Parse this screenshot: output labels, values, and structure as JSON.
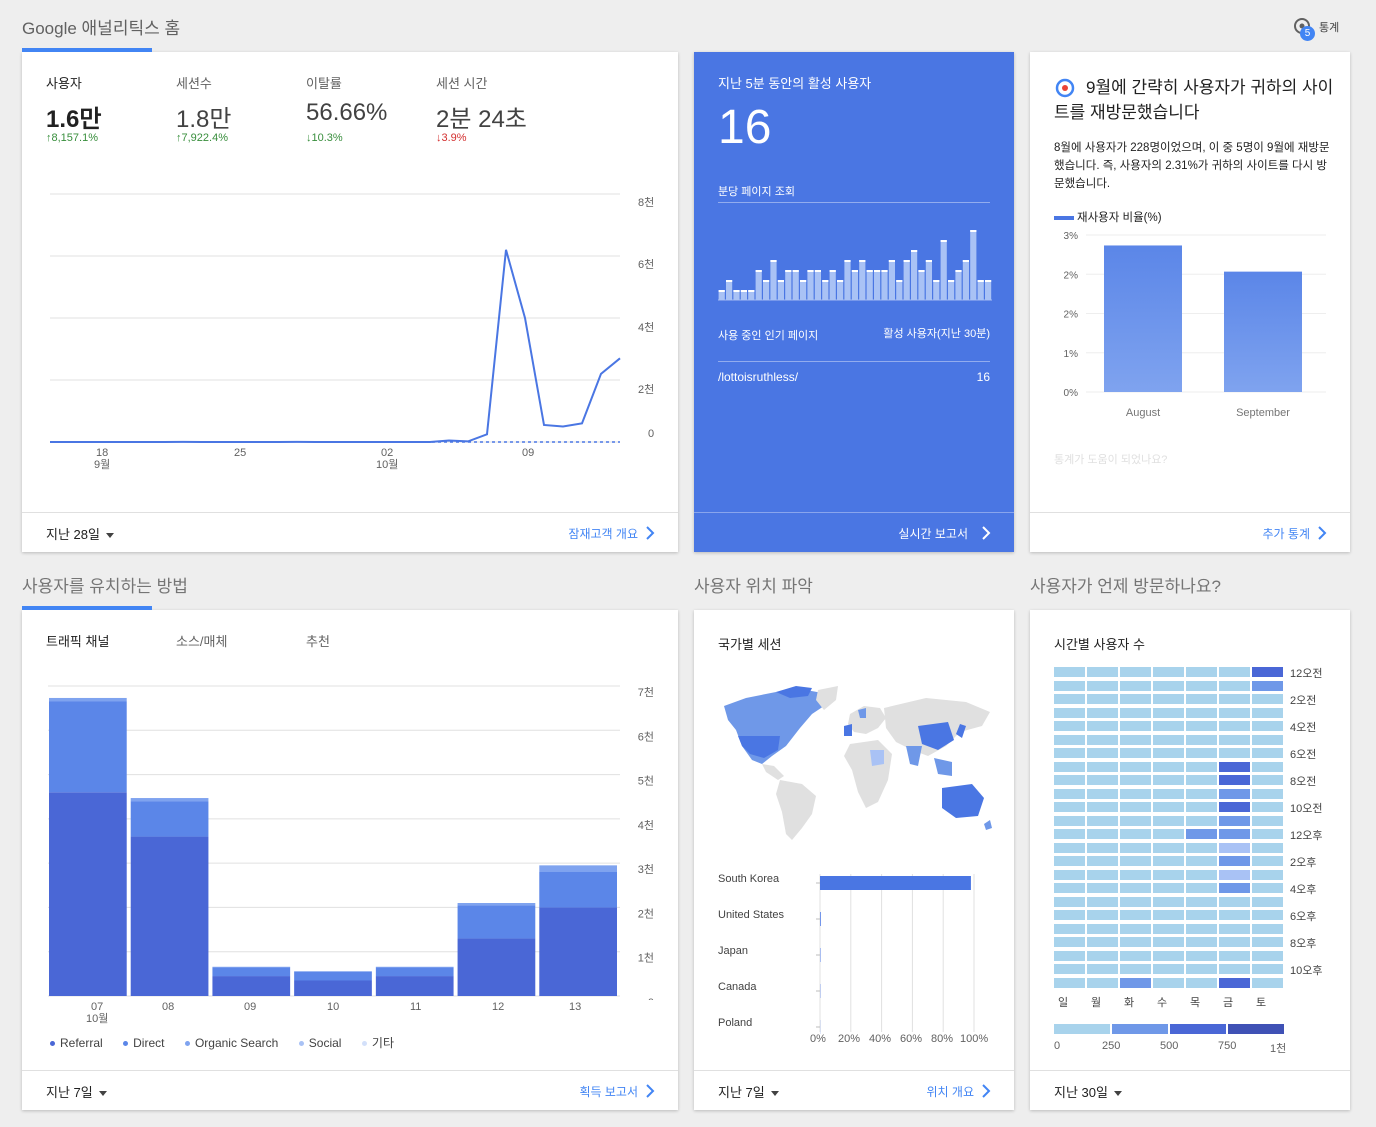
{
  "header": {
    "title": "Google 애널리틱스 홈",
    "insights_label": "통계",
    "insights_badge": "5"
  },
  "colors": {
    "accent": "#4285f4",
    "realtime_bg": "#4a76e3",
    "up": "#388e3c",
    "down": "#d32f2f"
  },
  "overview": {
    "metrics": [
      {
        "label": "사용자",
        "value": "1.6만",
        "change": "8,157.1%",
        "direction": "up"
      },
      {
        "label": "세션수",
        "value": "1.8만",
        "change": "7,922.4%",
        "direction": "up"
      },
      {
        "label": "이탈률",
        "value": "56.66%",
        "change": "10.3%",
        "direction": "down-good"
      },
      {
        "label": "세션 시간",
        "value": "2분 24초",
        "change": "3.9%",
        "direction": "down"
      }
    ],
    "y_ticks": [
      "8천",
      "6천",
      "4천",
      "2천",
      "0"
    ],
    "x_ticks": [
      {
        "day": "18",
        "month": "9월"
      },
      {
        "day": "25",
        "month": ""
      },
      {
        "day": "02",
        "month": "10월"
      },
      {
        "day": "09",
        "month": ""
      }
    ],
    "range": "지난 28일",
    "link": "잠재고객 개요"
  },
  "realtime": {
    "title": "지난 5분 동안의 활성 사용자",
    "count": "16",
    "subtitle": "분당 페이지 조회",
    "col_page": "사용 중인 인기 페이지",
    "col_users": "활성 사용자(지난 30분)",
    "pages": [
      {
        "path": "/lottoisruthless/",
        "users": "16"
      }
    ],
    "link": "실시간 보고서"
  },
  "insight": {
    "title": "9월에 간략히 사용자가 귀하의 사이트를 재방문했습니다",
    "body": "8월에 사용자가 228명이었으며, 이 중 5명이 9월에 재방문했습니다. 즉, 사용자의 2.31%가 귀하의 사이트를 다시 방문했습니다.",
    "legend": "재사용자 비율(%)",
    "y_ticks": [
      "3%",
      "2%",
      "2%",
      "1%",
      "0%"
    ],
    "bars": [
      {
        "label": "August",
        "value": 2.8
      },
      {
        "label": "September",
        "value": 2.3
      }
    ],
    "feedback": "통계가 도움이 되었나요?",
    "link": "추가 통계"
  },
  "acquisition": {
    "section_title": "사용자를 유치하는 방법",
    "tabs": [
      "트래픽 채널",
      "소스/매체",
      "추천"
    ],
    "y_ticks": [
      "7천",
      "6천",
      "5천",
      "4천",
      "3천",
      "2천",
      "1천",
      "0"
    ],
    "x_labels": [
      "07",
      "08",
      "09",
      "10",
      "11",
      "12",
      "13"
    ],
    "x_month": "10월",
    "legend": [
      "Referral",
      "Direct",
      "Organic Search",
      "Social",
      "기타"
    ],
    "range": "지난 7일",
    "link": "획득 보고서"
  },
  "location": {
    "section_title": "사용자 위치 파악",
    "card_title": "국가별 세션",
    "countries": [
      "South Korea",
      "United States",
      "Japan",
      "Canada",
      "Poland"
    ],
    "x_ticks": [
      "0%",
      "20%",
      "40%",
      "60%",
      "80%",
      "100%"
    ],
    "range": "지난 7일",
    "link": "위치 개요"
  },
  "time": {
    "section_title": "사용자가 언제 방문하나요?",
    "card_title": "시간별 사용자 수",
    "hour_labels": [
      "12오전",
      "2오전",
      "4오전",
      "6오전",
      "8오전",
      "10오전",
      "12오후",
      "2오후",
      "4오후",
      "6오후",
      "8오후",
      "10오후"
    ],
    "day_labels": [
      "일",
      "월",
      "화",
      "수",
      "목",
      "금",
      "토"
    ],
    "scale": [
      "0",
      "250",
      "500",
      "750",
      "1천"
    ],
    "range": "지난 30일"
  },
  "chart_data": [
    {
      "type": "line",
      "x": [
        "9/13",
        "9/14",
        "9/15",
        "9/16",
        "9/17",
        "9/18",
        "9/19",
        "9/20",
        "9/21",
        "9/22",
        "9/23",
        "9/24",
        "9/25",
        "9/26",
        "9/27",
        "9/28",
        "9/29",
        "9/30",
        "10/1",
        "10/2",
        "10/3",
        "10/4",
        "10/5",
        "10/6",
        "10/7",
        "10/8",
        "10/9",
        "10/10",
        "10/11",
        "10/12",
        "10/13"
      ],
      "values": [
        0,
        0,
        0,
        0,
        0,
        0,
        0,
        5,
        0,
        0,
        0,
        0,
        0,
        5,
        0,
        0,
        0,
        0,
        0,
        0,
        0,
        50,
        20,
        250,
        6200,
        4000,
        550,
        500,
        600,
        2200,
        2700
      ],
      "ylim": [
        0,
        8000
      ]
    },
    {
      "type": "bar",
      "categories": [
        "07",
        "08",
        "09",
        "10",
        "11",
        "12",
        "13"
      ],
      "series": [
        {
          "name": "Referral",
          "values": [
            4600,
            3600,
            450,
            350,
            450,
            1300,
            2000
          ]
        },
        {
          "name": "Direct",
          "values": [
            2050,
            800,
            200,
            200,
            200,
            750,
            800
          ]
        },
        {
          "name": "Organic Search",
          "values": [
            80,
            70,
            10,
            10,
            10,
            50,
            150
          ]
        },
        {
          "name": "Social",
          "values": [
            0,
            0,
            0,
            0,
            0,
            0,
            0
          ]
        },
        {
          "name": "기타",
          "values": [
            0,
            0,
            0,
            0,
            0,
            0,
            0
          ]
        }
      ],
      "ylim": [
        0,
        7000
      ]
    },
    {
      "type": "bar",
      "categories": [
        "August",
        "September"
      ],
      "values": [
        2.8,
        2.3
      ],
      "ylim": [
        0,
        3
      ]
    },
    {
      "type": "bar",
      "categories": [
        "South Korea",
        "United States",
        "Japan",
        "Canada",
        "Poland"
      ],
      "values": [
        98,
        0.5,
        0.3,
        0.2,
        0.1
      ],
      "xlim": [
        0,
        100
      ]
    },
    {
      "type": "bar",
      "values": [
        1,
        2,
        1,
        1,
        1,
        3,
        2,
        4,
        2,
        3,
        3,
        2,
        3,
        3,
        2,
        3,
        2,
        4,
        3,
        4,
        3,
        3,
        3,
        4,
        2,
        4,
        5,
        3,
        4,
        2,
        6,
        2,
        3,
        4,
        7,
        2,
        2
      ],
      "ylim": [
        0,
        7
      ]
    }
  ]
}
